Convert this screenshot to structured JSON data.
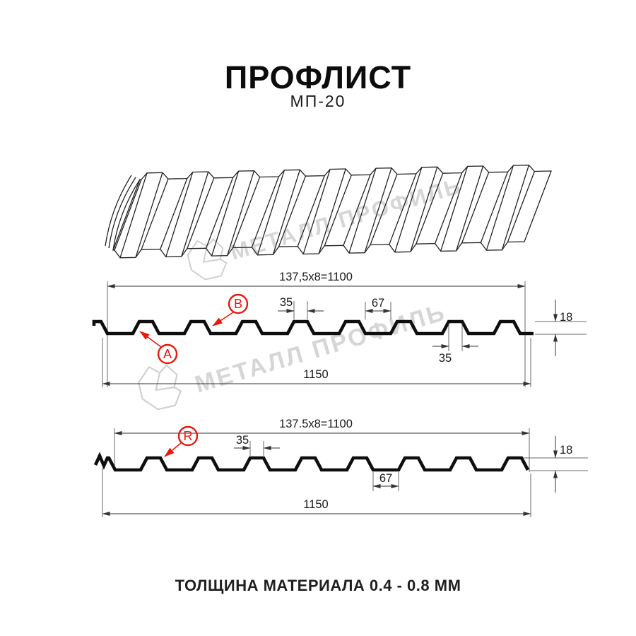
{
  "title": "ПРОФЛИСТ",
  "subtitle": "МП-20",
  "footer": "ТОЛЩИНА МАТЕРИАЛА 0.4 - 0.8 ММ",
  "watermark": {
    "text": "МЕТАЛЛ ПРОФИЛЬ",
    "color": "#d6d6d6"
  },
  "colors": {
    "ink": "#0e0e0e",
    "dim_lines": "#333333",
    "red_accent": "#e8190f",
    "watermark_gray": "#d6d6d6"
  },
  "section_top": {
    "dim_width_formula": "137,5x8=1100",
    "dim_overall_width": "1150",
    "dim_rib_top": "35",
    "dim_valley": "67",
    "dim_rib_top_lower": "35",
    "dim_height": "18",
    "label_a": "A",
    "label_b": "B"
  },
  "section_bottom": {
    "dim_width_formula": "137.5x8=1100",
    "dim_overall_width": "1150",
    "dim_rib_top": "35",
    "dim_valley": "67",
    "dim_height": "18",
    "label_r": "R"
  }
}
